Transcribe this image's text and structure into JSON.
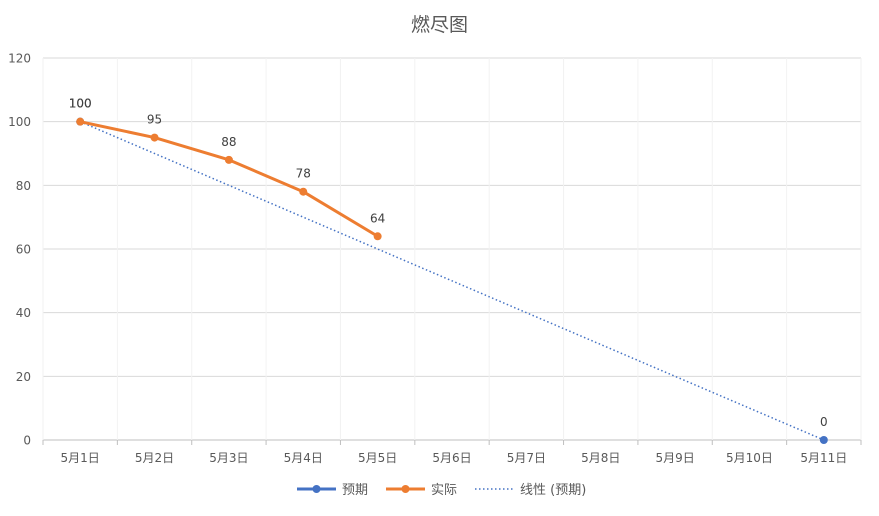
{
  "chart_data": {
    "type": "line",
    "title": "燃尽图",
    "xlabel": "",
    "ylabel": "",
    "categories": [
      "5月1日",
      "5月2日",
      "5月3日",
      "5月4日",
      "5月5日",
      "5月6日",
      "5月7日",
      "5月8日",
      "5月9日",
      "5月10日",
      "5月11日"
    ],
    "ylim": [
      0,
      120
    ],
    "yticks": [
      0,
      20,
      40,
      60,
      80,
      100,
      120
    ],
    "grid": true,
    "legend_position": "bottom",
    "series": [
      {
        "name": "预期",
        "color": "#4472C4",
        "values": [
          100,
          null,
          null,
          null,
          null,
          null,
          null,
          null,
          null,
          null,
          0
        ],
        "labels": [
          "100",
          "",
          "",
          "",
          "",
          "",
          "",
          "",
          "",
          "",
          "0"
        ]
      },
      {
        "name": "实际",
        "color": "#ED7D31",
        "values": [
          100,
          95,
          88,
          78,
          64,
          null,
          null,
          null,
          null,
          null,
          null
        ],
        "labels": [
          "100",
          "95",
          "88",
          "78",
          "64",
          "",
          "",
          "",
          "",
          "",
          ""
        ]
      }
    ],
    "trendline": {
      "name": "线性 (预期)",
      "color": "#4472C4",
      "style": "dotted",
      "from": {
        "category": "5月1日",
        "y": 100
      },
      "to": {
        "category": "5月11日",
        "y": 0
      }
    }
  }
}
